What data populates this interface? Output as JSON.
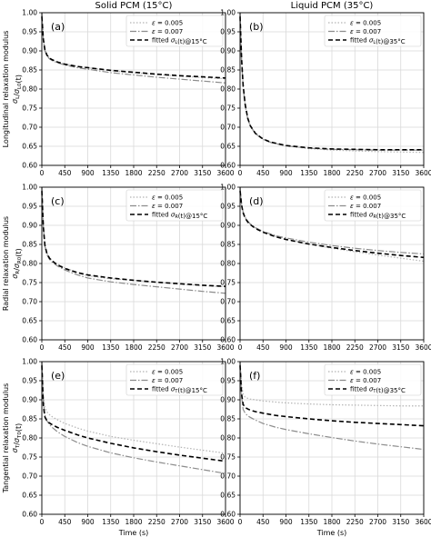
{
  "figure": {
    "column_titles": [
      "Solid PCM (15°C)",
      "Liquid PCM (35°C)"
    ],
    "row_ylabels": [
      {
        "line1": "Longitudinal relaxation modulus",
        "line2": "σL/σL0(t)"
      },
      {
        "line1": "Radial relaxation modulus",
        "line2": "σR/σR0(t)"
      },
      {
        "line1": "Tangential relaxation modulus",
        "line2": "σT/σT0(t)"
      }
    ],
    "xlabel": "Time (s)"
  },
  "series_styles": {
    "eps005": {
      "color": "#b3b3b3",
      "dash": "1.5,2",
      "width": 1.2
    },
    "eps007": {
      "color": "#8c8c8c",
      "dash": "7,2,1.5,2",
      "width": 1.2
    },
    "fitted": {
      "color": "#000000",
      "dash": "5,3",
      "width": 1.6
    }
  },
  "chart_data": [
    {
      "type": "line",
      "panel": "(a)",
      "xlim": [
        0,
        3600
      ],
      "ylim": [
        0.6,
        1.0
      ],
      "xticks": [
        0,
        450,
        900,
        1350,
        1800,
        2250,
        2700,
        3150,
        3600
      ],
      "yticks": [
        0.6,
        0.65,
        0.7,
        0.75,
        0.8,
        0.85,
        0.9,
        0.95,
        1.0
      ],
      "grid": true,
      "legend": "top-right",
      "series": [
        {
          "name": "ε = 0.005",
          "style": "eps005",
          "x": [
            0,
            30,
            60,
            100,
            150,
            200,
            300,
            450,
            700,
            900,
            1350,
            1800,
            2250,
            2700,
            3150,
            3600
          ],
          "y": [
            1.0,
            0.935,
            0.905,
            0.89,
            0.881,
            0.877,
            0.872,
            0.866,
            0.86,
            0.856,
            0.848,
            0.843,
            0.838,
            0.834,
            0.83,
            0.827
          ]
        },
        {
          "name": "ε = 0.007",
          "style": "eps007",
          "x": [
            0,
            30,
            60,
            100,
            150,
            200,
            300,
            450,
            700,
            900,
            1350,
            1800,
            2250,
            2700,
            3150,
            3600
          ],
          "y": [
            1.0,
            0.93,
            0.9,
            0.887,
            0.879,
            0.875,
            0.869,
            0.863,
            0.856,
            0.852,
            0.843,
            0.837,
            0.831,
            0.826,
            0.821,
            0.816
          ]
        },
        {
          "name": "fitted σL(t)@15°C",
          "style": "fitted",
          "x": [
            0,
            30,
            60,
            100,
            150,
            200,
            300,
            450,
            700,
            900,
            1350,
            1800,
            2250,
            2700,
            3150,
            3600
          ],
          "y": [
            0.99,
            0.93,
            0.903,
            0.889,
            0.881,
            0.877,
            0.871,
            0.865,
            0.859,
            0.856,
            0.849,
            0.844,
            0.839,
            0.835,
            0.832,
            0.829
          ]
        }
      ]
    },
    {
      "type": "line",
      "panel": "(b)",
      "xlim": [
        0,
        3600
      ],
      "ylim": [
        0.6,
        1.0
      ],
      "xticks": [
        0,
        450,
        900,
        1350,
        1800,
        2250,
        2700,
        3150,
        3600
      ],
      "yticks": [
        0.6,
        0.65,
        0.7,
        0.75,
        0.8,
        0.85,
        0.9,
        0.95,
        1.0
      ],
      "grid": true,
      "legend": "top-right",
      "series": [
        {
          "name": "ε = 0.005",
          "style": "eps005",
          "x": [
            0,
            30,
            60,
            100,
            150,
            200,
            300,
            450,
            600,
            900,
            1350,
            1800,
            2250,
            2700,
            3150,
            3600
          ],
          "y": [
            1.0,
            0.88,
            0.81,
            0.76,
            0.725,
            0.705,
            0.685,
            0.67,
            0.661,
            0.651,
            0.644,
            0.64,
            0.638,
            0.636,
            0.635,
            0.634
          ]
        },
        {
          "name": "ε = 0.007",
          "style": "eps007",
          "x": [
            0,
            30,
            60,
            100,
            150,
            200,
            300,
            450,
            600,
            900,
            1350,
            1800,
            2250,
            2700,
            3150,
            3600
          ],
          "y": [
            1.0,
            0.875,
            0.805,
            0.757,
            0.722,
            0.703,
            0.683,
            0.668,
            0.66,
            0.651,
            0.645,
            0.642,
            0.641,
            0.64,
            0.64,
            0.64
          ]
        },
        {
          "name": "fitted σL(t)@35°C",
          "style": "fitted",
          "x": [
            0,
            30,
            60,
            100,
            150,
            200,
            300,
            450,
            600,
            900,
            1350,
            1800,
            2250,
            2700,
            3150,
            3600
          ],
          "y": [
            0.99,
            0.88,
            0.81,
            0.76,
            0.724,
            0.704,
            0.684,
            0.669,
            0.661,
            0.652,
            0.646,
            0.643,
            0.642,
            0.641,
            0.641,
            0.641
          ]
        }
      ]
    },
    {
      "type": "line",
      "panel": "(c)",
      "xlim": [
        0,
        3600
      ],
      "ylim": [
        0.6,
        1.0
      ],
      "xticks": [
        0,
        450,
        900,
        1350,
        1800,
        2250,
        2700,
        3150,
        3600
      ],
      "yticks": [
        0.6,
        0.65,
        0.7,
        0.75,
        0.8,
        0.85,
        0.9,
        0.95,
        1.0
      ],
      "grid": true,
      "legend": "top-right",
      "series": [
        {
          "name": "ε = 0.005",
          "style": "eps005",
          "x": [
            0,
            30,
            60,
            100,
            150,
            200,
            300,
            450,
            700,
            900,
            1350,
            1800,
            2250,
            2700,
            3150,
            3600
          ],
          "y": [
            1.0,
            0.9,
            0.85,
            0.827,
            0.815,
            0.808,
            0.799,
            0.789,
            0.776,
            0.768,
            0.76,
            0.756,
            0.751,
            0.746,
            0.742,
            0.739
          ]
        },
        {
          "name": "ε = 0.007",
          "style": "eps007",
          "x": [
            0,
            30,
            60,
            100,
            150,
            200,
            300,
            450,
            700,
            900,
            1350,
            1800,
            2250,
            2700,
            3150,
            3600
          ],
          "y": [
            1.0,
            0.895,
            0.845,
            0.823,
            0.811,
            0.804,
            0.794,
            0.783,
            0.77,
            0.762,
            0.752,
            0.745,
            0.739,
            0.733,
            0.727,
            0.722
          ]
        },
        {
          "name": "fitted σR(t)@15°C",
          "style": "fitted",
          "x": [
            0,
            30,
            60,
            100,
            150,
            200,
            300,
            450,
            700,
            900,
            1350,
            1800,
            2250,
            2700,
            3150,
            3600
          ],
          "y": [
            0.99,
            0.895,
            0.848,
            0.826,
            0.814,
            0.807,
            0.797,
            0.787,
            0.776,
            0.77,
            0.762,
            0.756,
            0.751,
            0.747,
            0.743,
            0.74
          ]
        }
      ]
    },
    {
      "type": "line",
      "panel": "(d)",
      "xlim": [
        0,
        3600
      ],
      "ylim": [
        0.6,
        1.0
      ],
      "xticks": [
        0,
        450,
        900,
        1350,
        1800,
        2250,
        2700,
        3150,
        3600
      ],
      "yticks": [
        0.6,
        0.65,
        0.7,
        0.75,
        0.8,
        0.85,
        0.9,
        0.95,
        1.0
      ],
      "grid": true,
      "legend": "top-right",
      "series": [
        {
          "name": "ε = 0.005",
          "style": "eps005",
          "x": [
            0,
            30,
            60,
            100,
            150,
            200,
            300,
            450,
            700,
            900,
            1350,
            1800,
            2250,
            2700,
            3150,
            3600
          ],
          "y": [
            1.0,
            0.955,
            0.935,
            0.92,
            0.91,
            0.903,
            0.893,
            0.883,
            0.871,
            0.864,
            0.851,
            0.84,
            0.831,
            0.822,
            0.814,
            0.806
          ]
        },
        {
          "name": "ε = 0.007",
          "style": "eps007",
          "x": [
            0,
            30,
            60,
            100,
            150,
            200,
            300,
            450,
            700,
            900,
            1350,
            1800,
            2250,
            2700,
            3150,
            3600
          ],
          "y": [
            1.0,
            0.955,
            0.935,
            0.921,
            0.911,
            0.904,
            0.894,
            0.884,
            0.873,
            0.867,
            0.856,
            0.847,
            0.84,
            0.834,
            0.829,
            0.825
          ]
        },
        {
          "name": "fitted σR(t)@35°C",
          "style": "fitted",
          "x": [
            0,
            30,
            60,
            100,
            150,
            200,
            300,
            450,
            700,
            900,
            1350,
            1800,
            2250,
            2700,
            3150,
            3600
          ],
          "y": [
            0.99,
            0.953,
            0.933,
            0.919,
            0.909,
            0.902,
            0.892,
            0.882,
            0.87,
            0.863,
            0.851,
            0.842,
            0.834,
            0.827,
            0.821,
            0.816
          ]
        }
      ]
    },
    {
      "type": "line",
      "panel": "(e)",
      "xlim": [
        0,
        3600
      ],
      "ylim": [
        0.6,
        1.0
      ],
      "xticks": [
        0,
        450,
        900,
        1350,
        1800,
        2250,
        2700,
        3150,
        3600
      ],
      "yticks": [
        0.6,
        0.65,
        0.7,
        0.75,
        0.8,
        0.85,
        0.9,
        0.95,
        1.0
      ],
      "grid": true,
      "legend": "top-right",
      "series": [
        {
          "name": "ε = 0.005",
          "style": "eps005",
          "x": [
            0,
            30,
            60,
            100,
            150,
            200,
            300,
            450,
            700,
            900,
            1350,
            1800,
            2250,
            2700,
            3150,
            3600
          ],
          "y": [
            1.0,
            0.91,
            0.88,
            0.868,
            0.861,
            0.856,
            0.848,
            0.838,
            0.826,
            0.818,
            0.804,
            0.794,
            0.785,
            0.776,
            0.768,
            0.76
          ]
        },
        {
          "name": "ε = 0.007",
          "style": "eps007",
          "x": [
            0,
            30,
            60,
            100,
            150,
            200,
            300,
            450,
            700,
            900,
            1350,
            1800,
            2250,
            2700,
            3150,
            3600
          ],
          "y": [
            1.0,
            0.895,
            0.86,
            0.845,
            0.835,
            0.828,
            0.817,
            0.804,
            0.788,
            0.778,
            0.761,
            0.748,
            0.737,
            0.727,
            0.717,
            0.707
          ]
        },
        {
          "name": "fitted σT(t)@15°C",
          "style": "fitted",
          "x": [
            0,
            30,
            60,
            100,
            150,
            200,
            300,
            450,
            700,
            900,
            1350,
            1800,
            2250,
            2700,
            3150,
            3600
          ],
          "y": [
            0.99,
            0.885,
            0.855,
            0.845,
            0.839,
            0.835,
            0.828,
            0.82,
            0.808,
            0.8,
            0.786,
            0.774,
            0.764,
            0.755,
            0.747,
            0.739
          ]
        }
      ]
    },
    {
      "type": "line",
      "panel": "(f)",
      "xlim": [
        0,
        3600
      ],
      "ylim": [
        0.6,
        1.0
      ],
      "xticks": [
        0,
        450,
        900,
        1350,
        1800,
        2250,
        2700,
        3150,
        3600
      ],
      "yticks": [
        0.6,
        0.65,
        0.7,
        0.75,
        0.8,
        0.85,
        0.9,
        0.95,
        1.0
      ],
      "grid": true,
      "legend": "top-right",
      "series": [
        {
          "name": "ε = 0.005",
          "style": "eps005",
          "x": [
            0,
            30,
            60,
            100,
            150,
            200,
            300,
            450,
            700,
            900,
            1350,
            1800,
            2250,
            2700,
            3150,
            3600
          ],
          "y": [
            1.0,
            0.94,
            0.915,
            0.907,
            0.904,
            0.902,
            0.9,
            0.897,
            0.894,
            0.892,
            0.889,
            0.887,
            0.886,
            0.885,
            0.884,
            0.884
          ]
        },
        {
          "name": "ε = 0.007",
          "style": "eps007",
          "x": [
            0,
            30,
            60,
            100,
            150,
            200,
            300,
            450,
            700,
            900,
            1350,
            1800,
            2250,
            2700,
            3150,
            3600
          ],
          "y": [
            1.0,
            0.91,
            0.875,
            0.865,
            0.858,
            0.854,
            0.847,
            0.838,
            0.828,
            0.822,
            0.811,
            0.801,
            0.792,
            0.784,
            0.777,
            0.77
          ]
        },
        {
          "name": "fitted σT(t)@35°C",
          "style": "fitted",
          "x": [
            0,
            30,
            60,
            100,
            150,
            200,
            300,
            450,
            700,
            900,
            1350,
            1800,
            2250,
            2700,
            3150,
            3600
          ],
          "y": [
            0.99,
            0.915,
            0.888,
            0.88,
            0.876,
            0.873,
            0.869,
            0.865,
            0.859,
            0.856,
            0.85,
            0.845,
            0.841,
            0.838,
            0.835,
            0.832
          ]
        }
      ]
    }
  ]
}
